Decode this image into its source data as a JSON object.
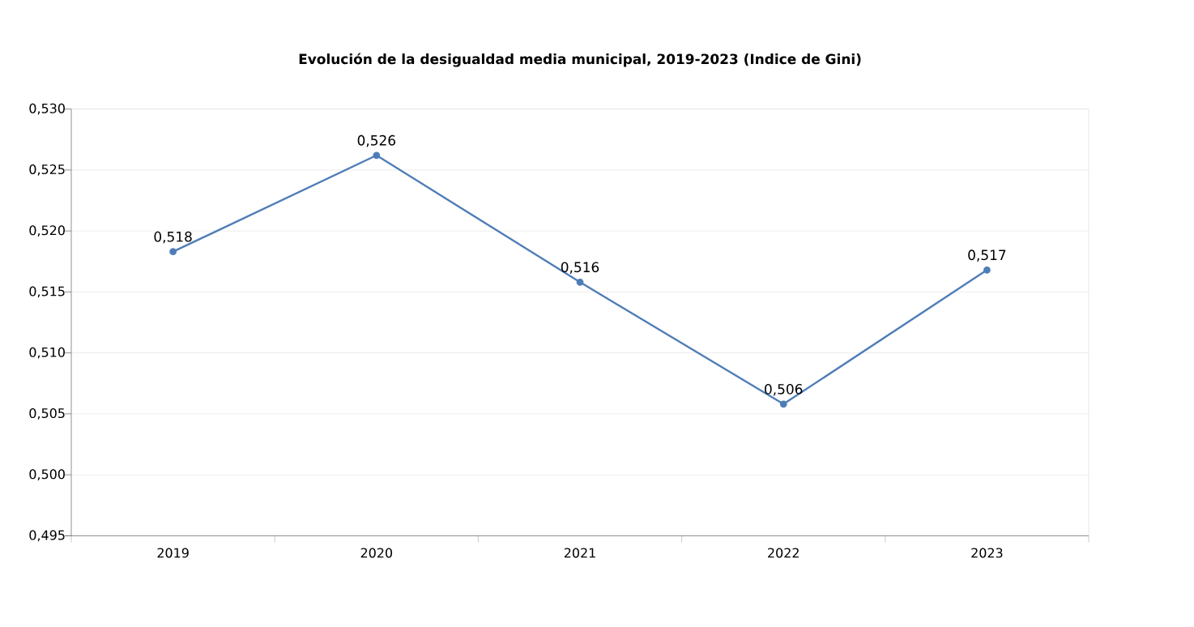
{
  "chart_data": {
    "type": "line",
    "title": "Evolución de la desigualdad media municipal, 2019-2023 (Indice de Gini)",
    "categories": [
      "2019",
      "2020",
      "2021",
      "2022",
      "2023"
    ],
    "series": [
      {
        "color": "#4f7db8",
        "values": [
          0.5183,
          0.5262,
          0.5158,
          0.5058,
          0.5168
        ],
        "value_labels": [
          "0,518",
          "0,526",
          "0,516",
          "0,506",
          "0,517"
        ]
      }
    ],
    "ylim": [
      0.495,
      0.53
    ],
    "yticks": [
      {
        "value": 0.495,
        "label": "0,495"
      },
      {
        "value": 0.5,
        "label": "0,500"
      },
      {
        "value": 0.505,
        "label": "0,505"
      },
      {
        "value": 0.51,
        "label": "0,510"
      },
      {
        "value": 0.515,
        "label": "0,515"
      },
      {
        "value": 0.52,
        "label": "0,520"
      },
      {
        "value": 0.525,
        "label": "0,525"
      },
      {
        "value": 0.53,
        "label": "0,530"
      }
    ],
    "grid": "y",
    "marker": "circle",
    "line_style": "solid"
  }
}
